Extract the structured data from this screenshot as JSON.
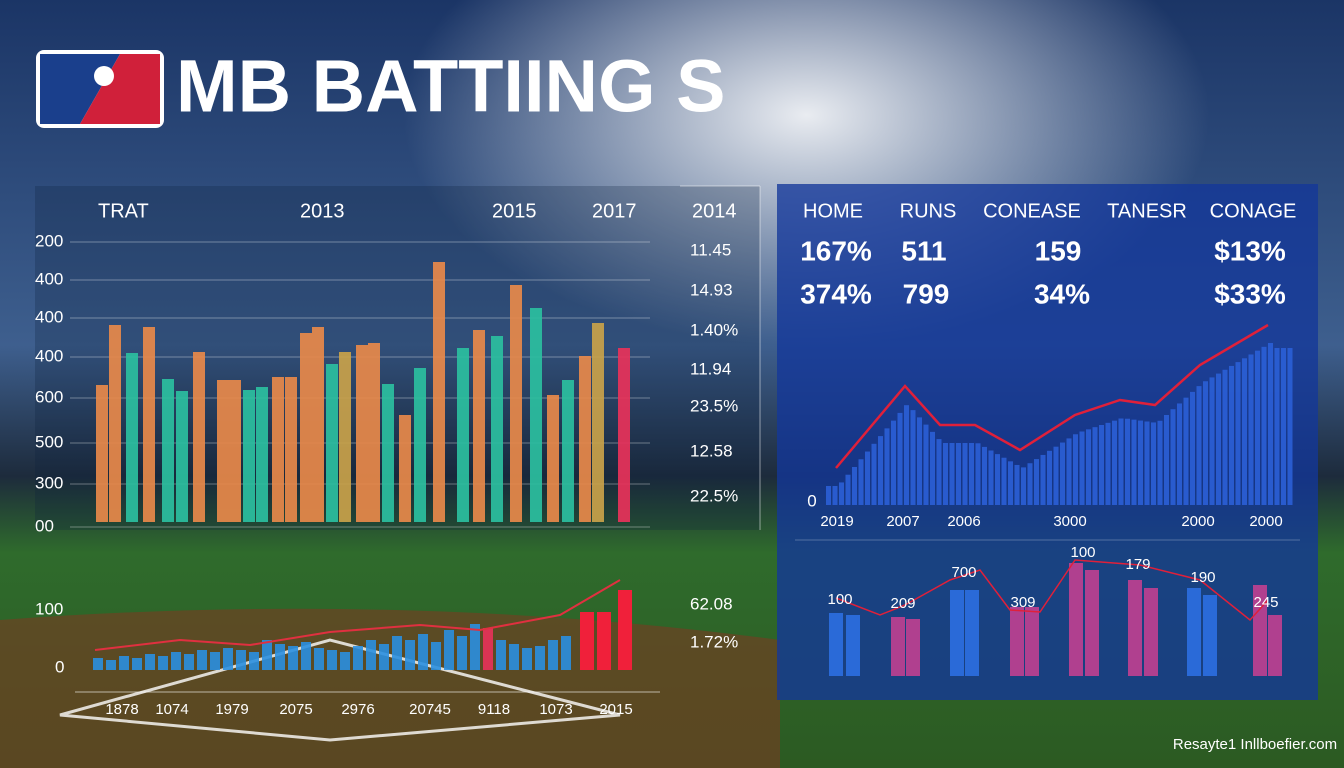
{
  "header": {
    "title": "MB BATTIING S"
  },
  "left_panel": {
    "headers": [
      "TRAT",
      "2013",
      "2015",
      "2017",
      "2014"
    ],
    "y_labels": [
      "200",
      "400",
      "400",
      "400",
      "600",
      "500",
      "300",
      "00"
    ],
    "right_labels": [
      "11.45",
      "14.93",
      "1.40%",
      "11.94",
      "23.5%",
      "12.58",
      "22.5%"
    ]
  },
  "lower_panel": {
    "y_labels": [
      "100",
      "0"
    ],
    "x_labels": [
      "1878",
      "1074",
      "1979",
      "2075",
      "2976",
      "20745",
      "9118",
      "1073",
      "2015"
    ],
    "right_labels": [
      "62.08",
      "1.72%"
    ]
  },
  "right_panel": {
    "stats": {
      "headers": [
        "HOME",
        "RUNS",
        "CONEASE",
        "TANESR",
        "CONAGE"
      ],
      "rows": [
        [
          "167%",
          "511",
          "159",
          "$13%"
        ],
        [
          "374%",
          "799",
          "34%",
          "$33%"
        ]
      ]
    },
    "chart": {
      "y_label": "0",
      "x_labels": [
        "2019",
        "2007",
        "2006",
        "3000",
        "2000",
        "2000"
      ]
    },
    "lower_labels": [
      "100",
      "209",
      "700",
      "309",
      "100",
      "179",
      "190",
      "245"
    ]
  },
  "footer": "Resayte1 Inllboefier.com"
}
